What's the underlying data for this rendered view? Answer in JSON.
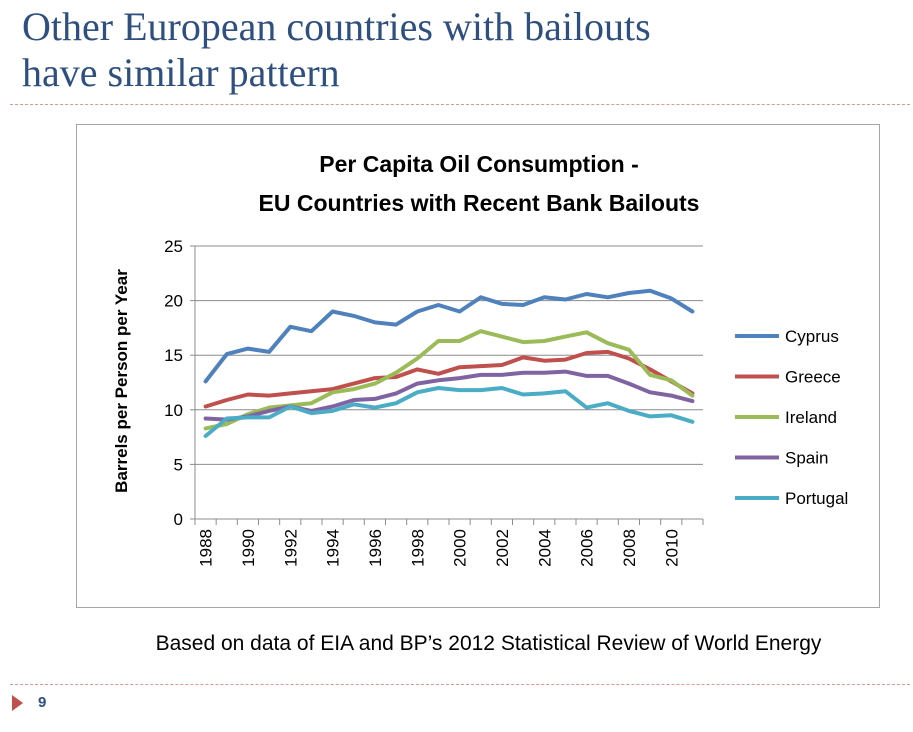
{
  "slide": {
    "title_line1": "Other European countries with bailouts",
    "title_line2": "have similar pattern",
    "caption": "Based on data of EIA and BP’s 2012 Statistical Review of World Energy",
    "page_number": "9",
    "colors": {
      "title": "#2f4f7f",
      "rule": "#d99a8a",
      "marker": "#c0504d"
    }
  },
  "chart_data": {
    "type": "line",
    "title_line1": "Per Capita Oil Consumption -",
    "title_line2": "EU Countries with Recent Bank Bailouts",
    "xlabel": "",
    "ylabel": "Barrels per Person per Year",
    "ylim": [
      0,
      25
    ],
    "yticks": [
      "0",
      "5",
      "10",
      "15",
      "20",
      "25"
    ],
    "x": [
      1988,
      1989,
      1990,
      1991,
      1992,
      1993,
      1994,
      1995,
      1996,
      1997,
      1998,
      1999,
      2000,
      2001,
      2002,
      2003,
      2004,
      2005,
      2006,
      2007,
      2008,
      2009,
      2010,
      2011
    ],
    "xtick_labels": [
      "1988",
      "1990",
      "1992",
      "1994",
      "1996",
      "1998",
      "2000",
      "2002",
      "2004",
      "2006",
      "2008",
      "2010"
    ],
    "grid": "horizontal",
    "legend_position": "right",
    "series": [
      {
        "name": "Cyprus",
        "color": "#4f81bd",
        "values": [
          12.6,
          15.1,
          15.6,
          15.3,
          17.6,
          17.2,
          19.0,
          18.6,
          18.0,
          17.8,
          19.0,
          19.6,
          19.0,
          20.3,
          19.7,
          19.6,
          20.3,
          20.1,
          20.6,
          20.3,
          20.7,
          20.9,
          20.2,
          19.0
        ]
      },
      {
        "name": "Greece",
        "color": "#c0504d",
        "values": [
          10.3,
          10.9,
          11.4,
          11.3,
          11.5,
          11.7,
          11.9,
          12.4,
          12.9,
          13.0,
          13.7,
          13.3,
          13.9,
          14.0,
          14.1,
          14.8,
          14.5,
          14.6,
          15.2,
          15.3,
          14.7,
          13.7,
          12.6,
          11.5
        ]
      },
      {
        "name": "Ireland",
        "color": "#9bbb59",
        "values": [
          8.3,
          8.7,
          9.6,
          10.2,
          10.4,
          10.6,
          11.6,
          11.9,
          12.4,
          13.4,
          14.7,
          16.3,
          16.3,
          17.2,
          16.7,
          16.2,
          16.3,
          16.7,
          17.1,
          16.1,
          15.5,
          13.2,
          12.7,
          11.3
        ]
      },
      {
        "name": "Spain",
        "color": "#8064a2",
        "values": [
          9.2,
          9.1,
          9.4,
          9.9,
          10.3,
          9.9,
          10.3,
          10.9,
          11.0,
          11.5,
          12.4,
          12.7,
          12.9,
          13.2,
          13.2,
          13.4,
          13.4,
          13.5,
          13.1,
          13.1,
          12.4,
          11.6,
          11.3,
          10.8
        ]
      },
      {
        "name": "Portugal",
        "color": "#4bacc6",
        "values": [
          7.6,
          9.2,
          9.3,
          9.3,
          10.3,
          9.7,
          9.9,
          10.5,
          10.2,
          10.6,
          11.6,
          12.0,
          11.8,
          11.8,
          12.0,
          11.4,
          11.5,
          11.7,
          10.2,
          10.6,
          9.9,
          9.4,
          9.5,
          8.9
        ]
      }
    ]
  }
}
